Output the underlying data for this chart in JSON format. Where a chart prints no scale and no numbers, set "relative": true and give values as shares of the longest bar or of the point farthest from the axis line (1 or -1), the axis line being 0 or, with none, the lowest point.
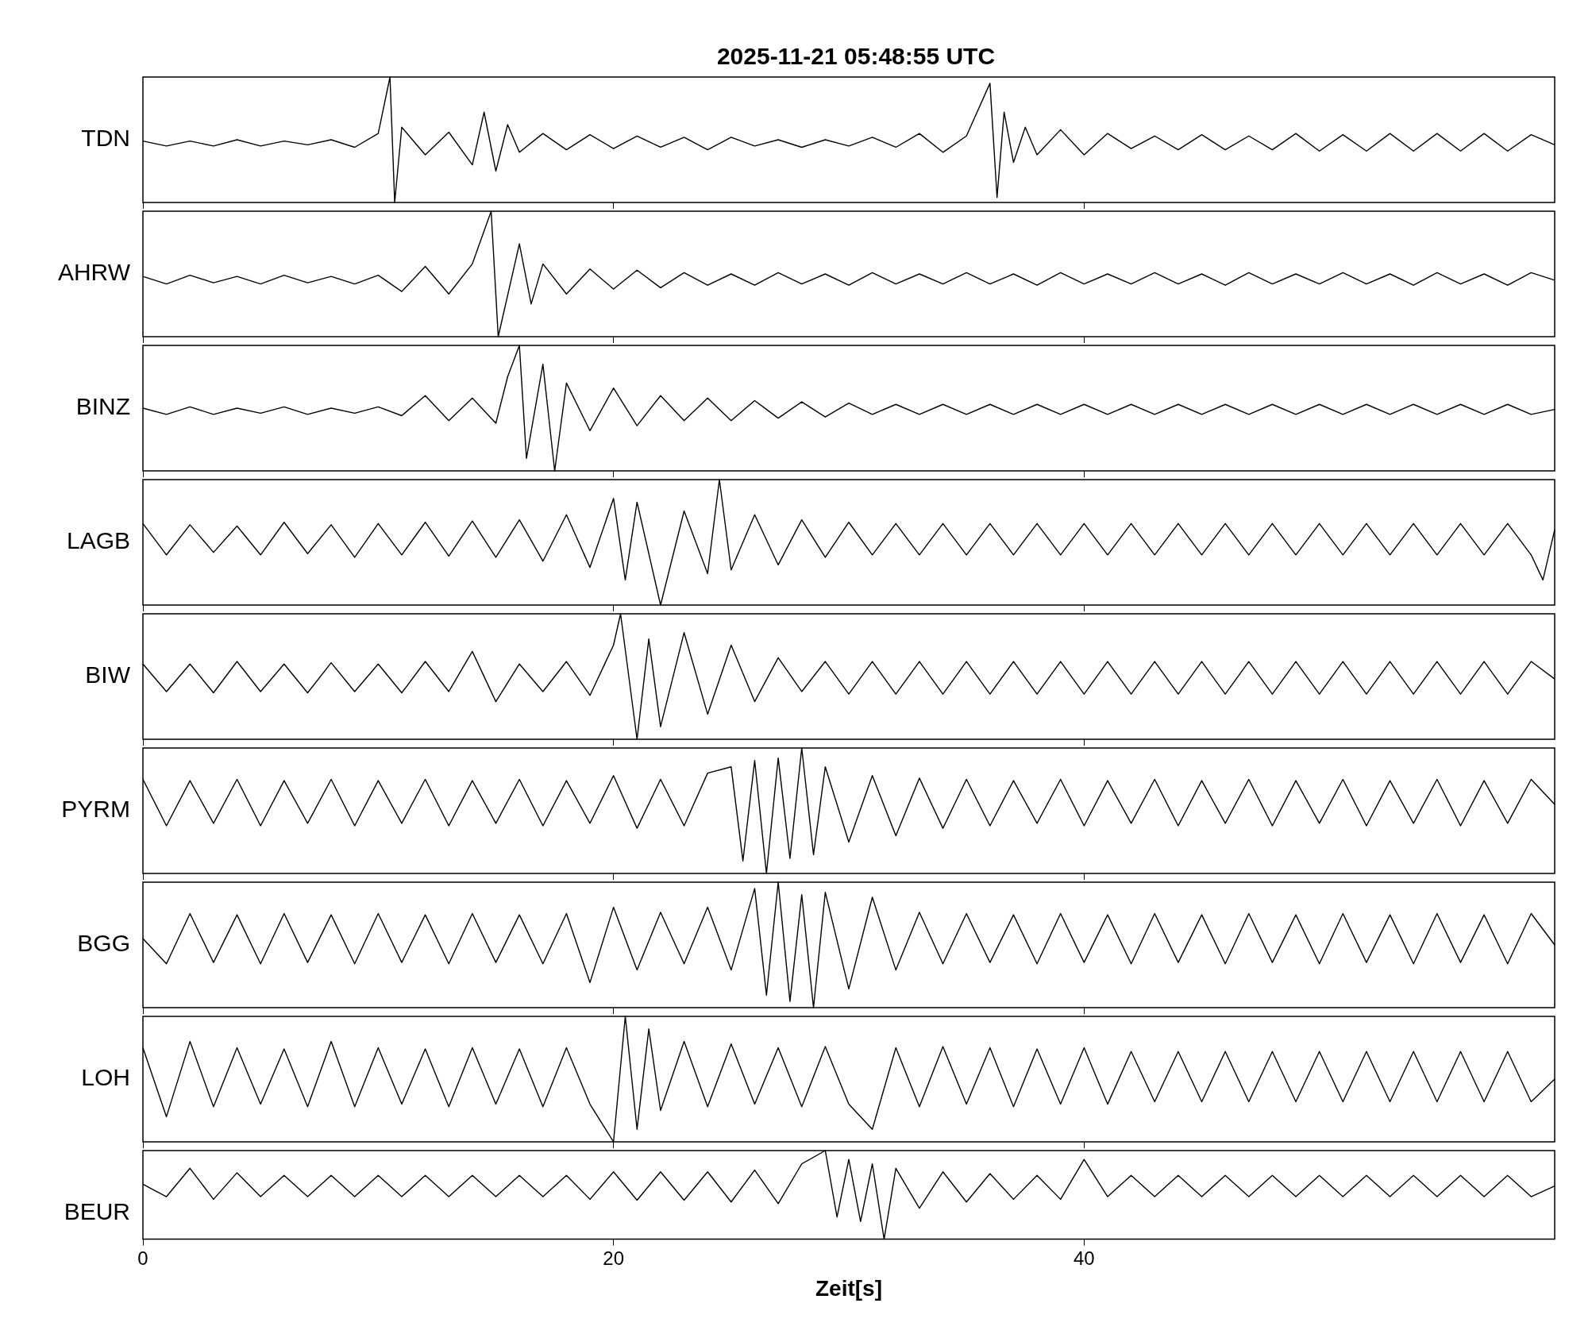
{
  "chart_data": [
    {
      "type": "line",
      "title": "2025-11-21  05:48:55 UTC",
      "ylabel": "TDN",
      "relative": true,
      "color": "#000000",
      "xlim": [
        0,
        60
      ],
      "xticks": [
        0,
        20,
        40
      ],
      "tick_labels": false,
      "x": [
        0,
        1,
        2,
        3,
        4,
        5,
        6,
        7,
        8,
        9,
        10,
        10.5,
        10.7,
        11,
        12,
        13,
        14,
        14.5,
        15,
        15.5,
        16,
        17,
        18,
        19,
        20,
        21,
        22,
        23,
        24,
        25,
        26,
        27,
        28,
        29,
        30,
        31,
        32,
        33,
        34,
        35,
        36,
        36.3,
        36.6,
        37,
        37.5,
        38,
        39,
        40,
        41,
        42,
        43,
        44,
        45,
        46,
        47,
        48,
        49,
        50,
        51,
        52,
        53,
        54,
        55,
        56,
        57,
        58,
        59,
        60
      ],
      "values": [
        0.49,
        0.45,
        0.49,
        0.45,
        0.5,
        0.45,
        0.49,
        0.46,
        0.5,
        0.44,
        0.55,
        1.0,
        0.0,
        0.6,
        0.38,
        0.56,
        0.3,
        0.72,
        0.25,
        0.62,
        0.4,
        0.55,
        0.42,
        0.54,
        0.43,
        0.53,
        0.44,
        0.52,
        0.42,
        0.52,
        0.45,
        0.5,
        0.44,
        0.5,
        0.45,
        0.52,
        0.44,
        0.55,
        0.4,
        0.53,
        0.95,
        0.04,
        0.72,
        0.32,
        0.6,
        0.38,
        0.58,
        0.38,
        0.55,
        0.43,
        0.53,
        0.42,
        0.54,
        0.42,
        0.53,
        0.42,
        0.55,
        0.41,
        0.54,
        0.41,
        0.55,
        0.41,
        0.55,
        0.41,
        0.55,
        0.41,
        0.54,
        0.46
      ]
    },
    {
      "type": "line",
      "ylabel": "AHRW",
      "relative": true,
      "color": "#000000",
      "xlim": [
        0,
        60
      ],
      "xticks": [
        0,
        20,
        40
      ],
      "tick_labels": false,
      "x": [
        0,
        1,
        2,
        3,
        4,
        5,
        6,
        7,
        8,
        9,
        10,
        11,
        12,
        13,
        14,
        14.8,
        15.1,
        16,
        16.5,
        17,
        18,
        19,
        20,
        21,
        22,
        23,
        24,
        25,
        26,
        27,
        28,
        29,
        30,
        31,
        32,
        33,
        34,
        35,
        36,
        37,
        38,
        39,
        40,
        41,
        42,
        43,
        44,
        45,
        46,
        47,
        48,
        49,
        50,
        51,
        52,
        53,
        54,
        55,
        56,
        57,
        58,
        59,
        60
      ],
      "values": [
        0.48,
        0.42,
        0.49,
        0.43,
        0.48,
        0.42,
        0.49,
        0.43,
        0.48,
        0.42,
        0.49,
        0.36,
        0.56,
        0.34,
        0.58,
        1.0,
        0.0,
        0.74,
        0.26,
        0.58,
        0.34,
        0.54,
        0.38,
        0.53,
        0.39,
        0.51,
        0.41,
        0.5,
        0.41,
        0.51,
        0.42,
        0.5,
        0.41,
        0.51,
        0.42,
        0.5,
        0.42,
        0.51,
        0.42,
        0.5,
        0.41,
        0.51,
        0.42,
        0.5,
        0.42,
        0.51,
        0.42,
        0.5,
        0.41,
        0.51,
        0.42,
        0.5,
        0.42,
        0.51,
        0.42,
        0.5,
        0.41,
        0.51,
        0.42,
        0.5,
        0.41,
        0.51,
        0.45
      ]
    },
    {
      "type": "line",
      "ylabel": "BINZ",
      "relative": true,
      "color": "#000000",
      "xlim": [
        0,
        60
      ],
      "xticks": [
        0,
        20,
        40
      ],
      "tick_labels": false,
      "x": [
        0,
        1,
        2,
        3,
        4,
        5,
        6,
        7,
        8,
        9,
        10,
        11,
        12,
        13,
        14,
        15,
        15.5,
        16,
        16.3,
        17,
        17.5,
        18,
        19,
        20,
        21,
        22,
        23,
        24,
        25,
        26,
        27,
        28,
        29,
        30,
        31,
        32,
        33,
        34,
        35,
        36,
        37,
        38,
        39,
        40,
        41,
        42,
        43,
        44,
        45,
        46,
        47,
        48,
        49,
        50,
        51,
        52,
        53,
        54,
        55,
        56,
        57,
        58,
        59,
        60
      ],
      "values": [
        0.5,
        0.45,
        0.51,
        0.45,
        0.5,
        0.46,
        0.51,
        0.45,
        0.5,
        0.46,
        0.51,
        0.44,
        0.6,
        0.4,
        0.58,
        0.38,
        0.75,
        1.0,
        0.1,
        0.85,
        0.0,
        0.7,
        0.32,
        0.66,
        0.36,
        0.6,
        0.4,
        0.58,
        0.4,
        0.56,
        0.42,
        0.55,
        0.43,
        0.54,
        0.45,
        0.53,
        0.45,
        0.53,
        0.45,
        0.53,
        0.45,
        0.53,
        0.45,
        0.53,
        0.45,
        0.53,
        0.45,
        0.53,
        0.45,
        0.53,
        0.45,
        0.53,
        0.45,
        0.53,
        0.45,
        0.53,
        0.45,
        0.53,
        0.45,
        0.53,
        0.45,
        0.53,
        0.45,
        0.49
      ]
    },
    {
      "type": "line",
      "ylabel": "LAGB",
      "relative": true,
      "color": "#000000",
      "xlim": [
        0,
        60
      ],
      "xticks": [
        0,
        20,
        40
      ],
      "tick_labels": false,
      "x": [
        0,
        1,
        2,
        3,
        4,
        5,
        6,
        7,
        8,
        9,
        10,
        11,
        12,
        13,
        14,
        15,
        16,
        17,
        18,
        19,
        20,
        20.5,
        21,
        22,
        23,
        24,
        24.5,
        25,
        26,
        27,
        28,
        29,
        30,
        31,
        32,
        33,
        34,
        35,
        36,
        37,
        38,
        39,
        40,
        41,
        42,
        43,
        44,
        45,
        46,
        47,
        48,
        49,
        50,
        51,
        52,
        53,
        54,
        55,
        56,
        57,
        58,
        59,
        59.5,
        60
      ],
      "values": [
        0.65,
        0.4,
        0.64,
        0.42,
        0.63,
        0.4,
        0.66,
        0.41,
        0.64,
        0.38,
        0.65,
        0.4,
        0.66,
        0.39,
        0.67,
        0.38,
        0.68,
        0.35,
        0.72,
        0.3,
        0.85,
        0.2,
        0.82,
        0.0,
        0.75,
        0.25,
        1.0,
        0.28,
        0.72,
        0.32,
        0.68,
        0.38,
        0.66,
        0.4,
        0.65,
        0.4,
        0.65,
        0.4,
        0.65,
        0.4,
        0.65,
        0.4,
        0.65,
        0.4,
        0.65,
        0.4,
        0.65,
        0.4,
        0.65,
        0.4,
        0.65,
        0.4,
        0.65,
        0.4,
        0.65,
        0.4,
        0.65,
        0.4,
        0.65,
        0.4,
        0.65,
        0.4,
        0.2,
        0.6
      ]
    },
    {
      "type": "line",
      "ylabel": "BIW",
      "relative": true,
      "color": "#000000",
      "xlim": [
        0,
        60
      ],
      "xticks": [
        0,
        20,
        40
      ],
      "tick_labels": false,
      "x": [
        0,
        1,
        2,
        3,
        4,
        5,
        6,
        7,
        8,
        9,
        10,
        11,
        12,
        13,
        14,
        15,
        16,
        17,
        18,
        19,
        20,
        20.3,
        21,
        21.5,
        22,
        23,
        24,
        25,
        26,
        27,
        28,
        29,
        30,
        31,
        32,
        33,
        34,
        35,
        36,
        37,
        38,
        39,
        40,
        41,
        42,
        43,
        44,
        45,
        46,
        47,
        48,
        49,
        50,
        51,
        52,
        53,
        54,
        55,
        56,
        57,
        58,
        59,
        60
      ],
      "values": [
        0.6,
        0.38,
        0.6,
        0.37,
        0.62,
        0.38,
        0.6,
        0.37,
        0.61,
        0.38,
        0.6,
        0.37,
        0.62,
        0.38,
        0.7,
        0.3,
        0.6,
        0.38,
        0.62,
        0.35,
        0.75,
        1.0,
        0.0,
        0.8,
        0.1,
        0.85,
        0.2,
        0.75,
        0.3,
        0.65,
        0.38,
        0.62,
        0.36,
        0.62,
        0.36,
        0.62,
        0.36,
        0.62,
        0.36,
        0.62,
        0.36,
        0.62,
        0.36,
        0.62,
        0.36,
        0.62,
        0.36,
        0.62,
        0.36,
        0.62,
        0.36,
        0.62,
        0.36,
        0.62,
        0.36,
        0.62,
        0.36,
        0.62,
        0.36,
        0.62,
        0.36,
        0.62,
        0.48
      ]
    },
    {
      "type": "line",
      "ylabel": "PYRM",
      "relative": true,
      "color": "#000000",
      "xlim": [
        0,
        60
      ],
      "xticks": [
        0,
        20,
        40
      ],
      "tick_labels": false,
      "x": [
        0,
        1,
        2,
        3,
        4,
        5,
        6,
        7,
        8,
        9,
        10,
        11,
        12,
        13,
        14,
        15,
        16,
        17,
        18,
        19,
        20,
        21,
        22,
        23,
        24,
        25,
        25.5,
        26,
        26.5,
        27,
        27.5,
        28,
        28.5,
        29,
        30,
        31,
        32,
        33,
        34,
        35,
        36,
        37,
        38,
        39,
        40,
        41,
        42,
        43,
        44,
        45,
        46,
        47,
        48,
        49,
        50,
        51,
        52,
        53,
        54,
        55,
        56,
        57,
        58,
        59,
        60
      ],
      "values": [
        0.75,
        0.38,
        0.74,
        0.4,
        0.75,
        0.38,
        0.74,
        0.4,
        0.75,
        0.38,
        0.74,
        0.4,
        0.75,
        0.38,
        0.74,
        0.4,
        0.75,
        0.38,
        0.74,
        0.4,
        0.78,
        0.36,
        0.75,
        0.38,
        0.8,
        0.85,
        0.1,
        0.9,
        0.0,
        0.92,
        0.12,
        1.0,
        0.15,
        0.85,
        0.25,
        0.78,
        0.3,
        0.76,
        0.36,
        0.75,
        0.38,
        0.74,
        0.4,
        0.75,
        0.38,
        0.74,
        0.4,
        0.75,
        0.38,
        0.74,
        0.4,
        0.75,
        0.38,
        0.74,
        0.4,
        0.75,
        0.38,
        0.74,
        0.4,
        0.75,
        0.38,
        0.74,
        0.4,
        0.75,
        0.55
      ]
    },
    {
      "type": "line",
      "ylabel": "BGG",
      "relative": true,
      "color": "#000000",
      "xlim": [
        0,
        60
      ],
      "xticks": [
        0,
        20,
        40
      ],
      "tick_labels": false,
      "x": [
        0,
        1,
        2,
        3,
        4,
        5,
        6,
        7,
        8,
        9,
        10,
        11,
        12,
        13,
        14,
        15,
        16,
        17,
        18,
        19,
        20,
        21,
        22,
        23,
        24,
        25,
        26,
        26.5,
        27,
        27.5,
        28,
        28.5,
        29,
        30,
        31,
        32,
        33,
        34,
        35,
        36,
        37,
        38,
        39,
        40,
        41,
        42,
        43,
        44,
        45,
        46,
        47,
        48,
        49,
        50,
        51,
        52,
        53,
        54,
        55,
        56,
        57,
        58,
        59,
        60
      ],
      "values": [
        0.55,
        0.35,
        0.75,
        0.36,
        0.74,
        0.35,
        0.75,
        0.36,
        0.74,
        0.35,
        0.75,
        0.36,
        0.74,
        0.35,
        0.75,
        0.36,
        0.74,
        0.35,
        0.75,
        0.2,
        0.8,
        0.3,
        0.76,
        0.35,
        0.8,
        0.3,
        0.95,
        0.1,
        1.0,
        0.05,
        0.9,
        0.0,
        0.92,
        0.15,
        0.88,
        0.3,
        0.76,
        0.35,
        0.75,
        0.36,
        0.74,
        0.35,
        0.75,
        0.36,
        0.74,
        0.35,
        0.75,
        0.36,
        0.74,
        0.35,
        0.75,
        0.36,
        0.74,
        0.35,
        0.75,
        0.36,
        0.74,
        0.35,
        0.75,
        0.36,
        0.74,
        0.35,
        0.75,
        0.5
      ]
    },
    {
      "type": "line",
      "ylabel": "LOH",
      "relative": true,
      "color": "#000000",
      "xlim": [
        0,
        60
      ],
      "xticks": [
        0,
        20,
        40
      ],
      "tick_labels": false,
      "x": [
        0,
        1,
        2,
        3,
        4,
        5,
        6,
        7,
        8,
        9,
        10,
        11,
        12,
        13,
        14,
        15,
        16,
        17,
        18,
        19,
        20,
        20.5,
        21,
        21.5,
        22,
        23,
        24,
        25,
        26,
        27,
        28,
        29,
        30,
        31,
        32,
        33,
        34,
        35,
        36,
        37,
        38,
        39,
        40,
        41,
        42,
        43,
        44,
        45,
        46,
        47,
        48,
        49,
        50,
        51,
        52,
        53,
        54,
        55,
        56,
        57,
        58,
        59,
        60
      ],
      "values": [
        0.75,
        0.2,
        0.8,
        0.28,
        0.75,
        0.3,
        0.74,
        0.28,
        0.8,
        0.28,
        0.75,
        0.3,
        0.74,
        0.28,
        0.75,
        0.3,
        0.74,
        0.28,
        0.75,
        0.3,
        0.0,
        1.0,
        0.1,
        0.9,
        0.25,
        0.8,
        0.28,
        0.78,
        0.3,
        0.75,
        0.28,
        0.76,
        0.3,
        0.1,
        0.75,
        0.28,
        0.76,
        0.3,
        0.75,
        0.28,
        0.74,
        0.3,
        0.75,
        0.3,
        0.72,
        0.32,
        0.72,
        0.32,
        0.72,
        0.32,
        0.72,
        0.32,
        0.72,
        0.32,
        0.72,
        0.32,
        0.72,
        0.32,
        0.72,
        0.32,
        0.72,
        0.32,
        0.5
      ]
    },
    {
      "type": "line",
      "xlabel": "Zeit[s]",
      "ylabel": "BEUR",
      "relative": true,
      "color": "#000000",
      "xlim": [
        0,
        60
      ],
      "xticks": [
        0,
        20,
        40
      ],
      "tick_labels": "x",
      "x": [
        0,
        1,
        2,
        3,
        4,
        5,
        6,
        7,
        8,
        9,
        10,
        11,
        12,
        13,
        14,
        15,
        16,
        17,
        18,
        19,
        20,
        21,
        22,
        23,
        24,
        25,
        26,
        27,
        28,
        29,
        29.5,
        30,
        30.5,
        31,
        31.5,
        32,
        33,
        34,
        35,
        36,
        37,
        38,
        39,
        40,
        41,
        42,
        43,
        44,
        45,
        46,
        47,
        48,
        49,
        50,
        51,
        52,
        53,
        54,
        55,
        56,
        57,
        58,
        59,
        60
      ],
      "values": [
        0.62,
        0.48,
        0.8,
        0.45,
        0.75,
        0.48,
        0.72,
        0.48,
        0.72,
        0.48,
        0.72,
        0.48,
        0.72,
        0.48,
        0.72,
        0.48,
        0.72,
        0.48,
        0.72,
        0.45,
        0.76,
        0.44,
        0.76,
        0.44,
        0.76,
        0.42,
        0.78,
        0.4,
        0.85,
        1.0,
        0.25,
        0.9,
        0.2,
        0.85,
        0.0,
        0.8,
        0.35,
        0.76,
        0.42,
        0.74,
        0.45,
        0.72,
        0.45,
        0.9,
        0.48,
        0.72,
        0.48,
        0.72,
        0.48,
        0.72,
        0.48,
        0.72,
        0.48,
        0.72,
        0.48,
        0.72,
        0.48,
        0.72,
        0.48,
        0.72,
        0.48,
        0.72,
        0.48,
        0.6
      ]
    }
  ]
}
